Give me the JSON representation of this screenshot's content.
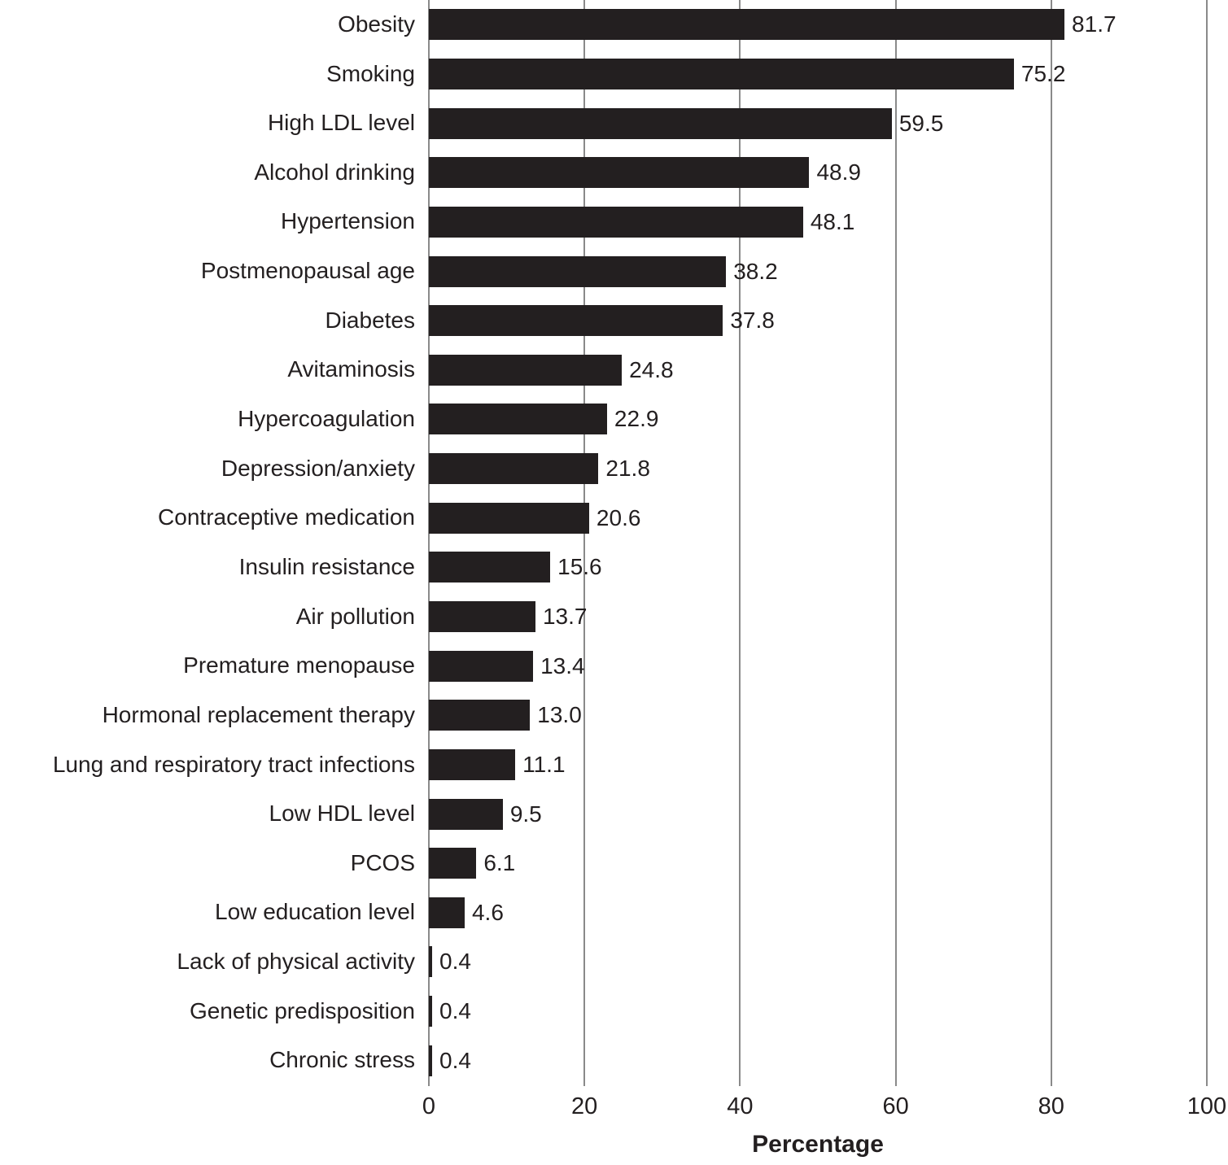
{
  "chart_data": {
    "type": "bar",
    "orientation": "horizontal",
    "title": "",
    "xlabel": "Percentage",
    "ylabel": "",
    "xlim": [
      0,
      100
    ],
    "xticks": [
      "0",
      "20",
      "40",
      "60",
      "80",
      "100"
    ],
    "grid": true,
    "legend": false,
    "categories": [
      "Obesity",
      "Smoking",
      "High LDL level",
      "Alcohol drinking",
      "Hypertension",
      "Postmenopausal age",
      "Diabetes",
      "Avitaminosis",
      "Hypercoagulation",
      "Depression/anxiety",
      "Contraceptive medication",
      "Insulin resistance",
      "Air pollution",
      "Premature menopause",
      "Hormonal replacement therapy",
      "Lung and respiratory tract infections",
      "Low HDL level",
      "PCOS",
      "Low education level",
      "Lack of physical activity",
      "Genetic predisposition",
      "Chronic stress"
    ],
    "values": [
      81.7,
      75.2,
      59.5,
      48.9,
      48.1,
      38.2,
      37.8,
      24.8,
      22.9,
      21.8,
      20.6,
      15.6,
      13.7,
      13.4,
      13.0,
      11.1,
      9.5,
      6.1,
      4.6,
      0.4,
      0.4,
      0.4
    ],
    "value_labels": [
      "81.7",
      "75.2",
      "59.5",
      "48.9",
      "48.1",
      "38.2",
      "37.8",
      "24.8",
      "22.9",
      "21.8",
      "20.6",
      "15.6",
      "13.7",
      "13.4",
      "13.0",
      "11.1",
      "9.5",
      "6.1",
      "4.6",
      "0.4",
      "0.4",
      "0.4"
    ]
  },
  "colors": {
    "bar": "#231f20",
    "gridline": "#8a8a8a",
    "text": "#231f20",
    "background": "#ffffff"
  }
}
